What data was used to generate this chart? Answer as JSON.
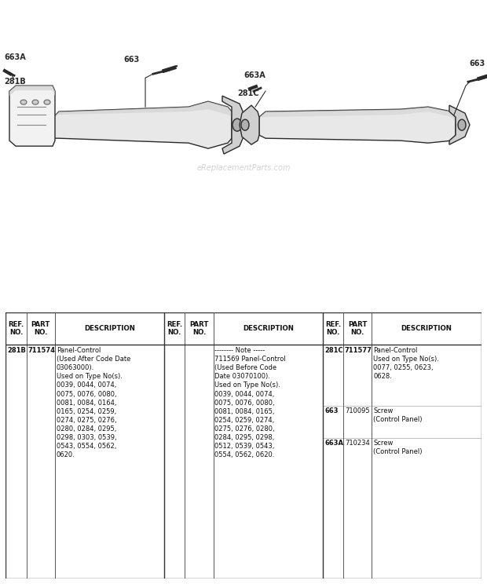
{
  "bg_color": "#ffffff",
  "watermark": "eReplacementParts.com",
  "fig_width": 6.2,
  "fig_height": 7.44,
  "dpi": 100,
  "table": {
    "header": [
      "REF.\nNO.",
      "PART\nNO.",
      "DESCRIPTION"
    ],
    "col1": [
      {
        "ref": "281B",
        "part": "711574",
        "bold_ref": true,
        "bold_part": true,
        "desc": "Panel-Control\n(Used After Code Date\n03063000).\nUsed on Type No(s).\n0039, 0044, 0074,\n0075, 0076, 0080,\n0081, 0084, 0164,\n0165, 0254, 0259,\n0274, 0275, 0276,\n0280, 0284, 0295,\n0298, 0303, 0539,\n0543, 0554, 0562,\n0620."
      }
    ],
    "col2": [
      {
        "ref": "",
        "part": "",
        "bold_ref": false,
        "bold_part": false,
        "desc": "-------- Note -----\n711569 Panel-Control\n(Used Before Code\nDate 03070100).\nUsed on Type No(s).\n0039, 0044, 0074,\n0075, 0076, 0080,\n0081, 0084, 0165,\n0254, 0259, 0274,\n0275, 0276, 0280,\n0284, 0295, 0298,\n0512, 0539, 0543,\n0554, 0562, 0620."
      }
    ],
    "col3": [
      {
        "ref": "281C",
        "part": "711577",
        "bold_ref": true,
        "bold_part": true,
        "desc": "Panel-Control\nUsed on Type No(s).\n0077, 0255, 0623,\n0628."
      },
      {
        "ref": "663",
        "part": "710095",
        "bold_ref": true,
        "bold_part": false,
        "desc": "Screw\n(Control Panel)"
      },
      {
        "ref": "663A",
        "part": "710234",
        "bold_ref": true,
        "bold_part": false,
        "desc": "Screw\n(Control Panel)"
      }
    ]
  }
}
